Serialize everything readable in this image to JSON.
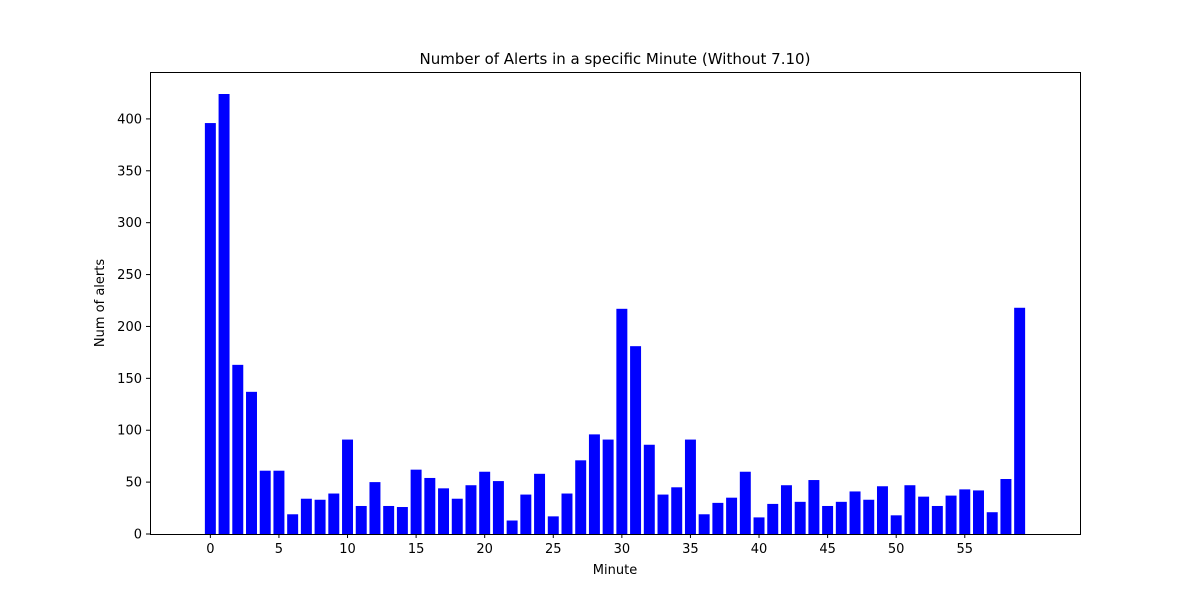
{
  "chart_data": {
    "type": "bar",
    "title": "Number of Alerts in a specific Minute (Without 7.10)",
    "xlabel": "Minute",
    "ylabel": "Num of alerts",
    "bar_color": "#0000ff",
    "x": [
      0,
      1,
      2,
      3,
      4,
      5,
      6,
      7,
      8,
      9,
      10,
      11,
      12,
      13,
      14,
      15,
      16,
      17,
      18,
      19,
      20,
      21,
      22,
      23,
      24,
      25,
      26,
      27,
      28,
      29,
      30,
      31,
      32,
      33,
      34,
      35,
      36,
      37,
      38,
      39,
      40,
      41,
      42,
      43,
      44,
      45,
      46,
      47,
      48,
      49,
      50,
      51,
      52,
      53,
      54,
      55,
      56,
      57,
      58,
      59
    ],
    "values": [
      396,
      424,
      163,
      137,
      61,
      61,
      19,
      34,
      33,
      39,
      91,
      27,
      50,
      27,
      26,
      62,
      54,
      44,
      34,
      47,
      60,
      51,
      13,
      38,
      58,
      17,
      39,
      71,
      96,
      91,
      217,
      181,
      86,
      38,
      45,
      91,
      19,
      30,
      35,
      60,
      16,
      29,
      47,
      31,
      52,
      27,
      31,
      41,
      33,
      46,
      18,
      47,
      36,
      27,
      37,
      43,
      42,
      21,
      53,
      218
    ],
    "xlim": [
      -4.4,
      63.4
    ],
    "ylim": [
      0,
      445.2
    ],
    "xticks": [
      0,
      5,
      10,
      15,
      20,
      25,
      30,
      35,
      40,
      45,
      50,
      55
    ],
    "yticks": [
      0,
      50,
      100,
      150,
      200,
      250,
      300,
      350,
      400
    ],
    "grid": false,
    "legend": "none"
  }
}
